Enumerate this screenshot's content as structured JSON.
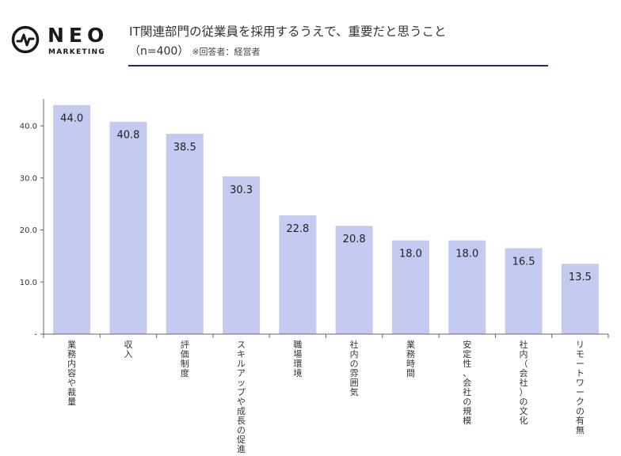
{
  "logo": {
    "word": "NEO",
    "sub": "MARKETING"
  },
  "header": {
    "title": "IT関連部門の従業員を採用するうえで、重要だと思うこと",
    "subtitle": "（n=400）",
    "note": "※回答者：経営者"
  },
  "colors": {
    "bar": "#c5caf0",
    "rule": "#232e64",
    "axis": "#666666"
  },
  "chart_data": {
    "type": "bar",
    "title": "IT関連部門の従業員を採用するうえで、重要だと思うこと",
    "categories": [
      "業務内容や裁量",
      "収入",
      "評価制度",
      "スキルアップや成長の促進",
      "職場環境",
      "社内の雰囲気",
      "業務時間",
      "安定性、会社の規模",
      "社内（会社）の文化",
      "リモートワークの有無"
    ],
    "values": [
      44.0,
      40.8,
      38.5,
      30.3,
      22.8,
      20.8,
      18.0,
      18.0,
      16.5,
      13.5
    ],
    "value_labels": [
      "44.0",
      "40.8",
      "38.5",
      "30.3",
      "22.8",
      "20.8",
      "18.0",
      "18.0",
      "16.5",
      "13.5"
    ],
    "yticks": [
      "-",
      "10.0",
      "20.0",
      "30.0",
      "40.0"
    ],
    "ytick_values": [
      0,
      10,
      20,
      30,
      40
    ],
    "ylim": [
      0,
      45
    ],
    "grid": false
  }
}
